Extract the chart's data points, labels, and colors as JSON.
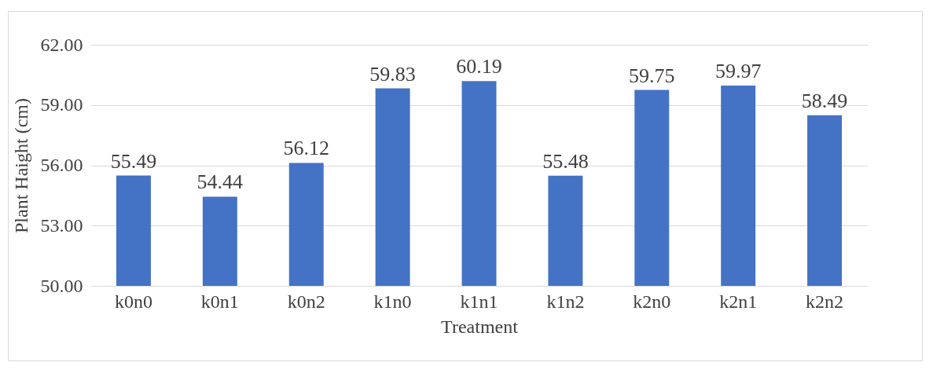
{
  "chart_data": {
    "type": "bar",
    "xlabel": "Treatment",
    "ylabel": "Plant Haight (cm)",
    "categories": [
      "k0n0",
      "k0n1",
      "k0n2",
      "k1n0",
      "k1n1",
      "k1n2",
      "k2n0",
      "k2n1",
      "k2n2"
    ],
    "values": [
      55.49,
      54.44,
      56.12,
      59.83,
      60.19,
      55.48,
      59.75,
      59.97,
      58.49
    ],
    "color": "#4472c4",
    "ylim": [
      50,
      62
    ],
    "yticks": [
      {
        "value": 50,
        "label": "50.00"
      },
      {
        "value": 53,
        "label": "53.00"
      },
      {
        "value": 56,
        "label": "56.00"
      },
      {
        "value": 59,
        "label": "59.00"
      },
      {
        "value": 62,
        "label": "62.00"
      }
    ],
    "grid": "y",
    "data_labels": true
  }
}
